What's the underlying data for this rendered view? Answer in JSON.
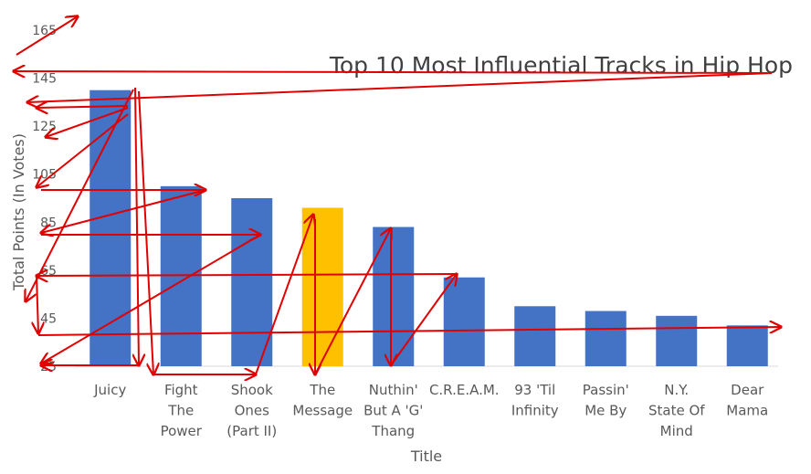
{
  "chart_data": {
    "type": "bar",
    "title": "Top 10 Most Influential Tracks in Hip Hop",
    "xlabel": "Title",
    "ylabel": "Total Points (In Votes)",
    "ylim": [
      25,
      165
    ],
    "yticks": [
      25,
      45,
      65,
      85,
      105,
      125,
      145,
      165
    ],
    "categories": [
      "Juicy",
      "Fight The Power",
      "Shook Ones (Part II)",
      "The Message",
      "Nuthin' But A 'G' Thang",
      "C.R.E.A.M.",
      "93 'Til Infinity",
      "Passin' Me By",
      "N.Y. State Of Mind",
      "Dear Mama"
    ],
    "category_lines": [
      [
        "Juicy"
      ],
      [
        "Fight",
        "The",
        "Power"
      ],
      [
        "Shook",
        "Ones",
        "(Part II)"
      ],
      [
        "The",
        "Message"
      ],
      [
        "Nuthin'",
        "But A 'G'",
        "Thang"
      ],
      [
        "C.R.E.A.M."
      ],
      [
        "93 'Til",
        "Infinity"
      ],
      [
        "Passin'",
        "Me By"
      ],
      [
        "N.Y.",
        "State Of",
        "Mind"
      ],
      [
        "Dear",
        "Mama"
      ]
    ],
    "values": [
      140,
      100,
      95,
      91,
      83,
      62,
      50,
      48,
      46,
      42
    ],
    "colors": {
      "bar": "#4472c4",
      "highlight": "#ffc000",
      "annotation": "#e00000"
    },
    "highlight_index": 3,
    "grid": false,
    "legend": "none"
  }
}
